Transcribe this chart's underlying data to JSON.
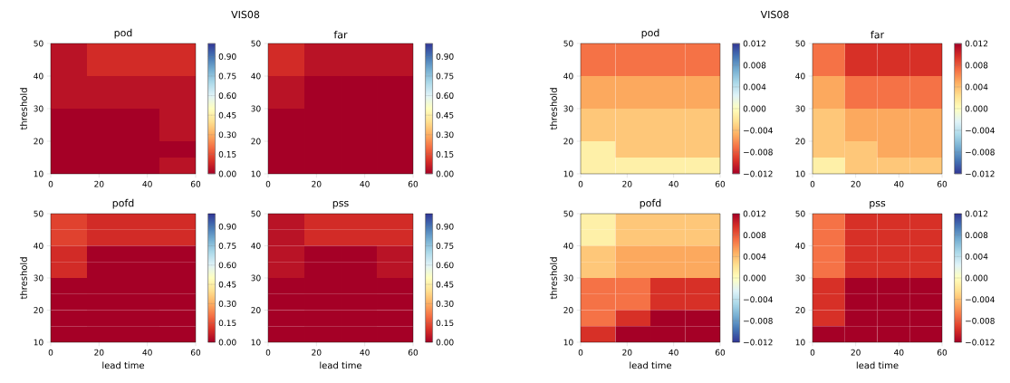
{
  "chart_data": [
    {
      "type": "heatmap",
      "title": "pod",
      "ylabel": "threshold",
      "annotations": [
        "VIS08"
      ],
      "xlim": [
        0,
        60
      ],
      "ylim": [
        10,
        50
      ],
      "xticks": [
        0,
        20,
        40,
        60
      ],
      "yticks": [
        10,
        20,
        30,
        40,
        50
      ],
      "cells": [
        [
          0.04,
          0.09,
          0.09,
          0.09
        ],
        [
          0.04,
          0.09,
          0.09,
          0.09
        ],
        [
          0.04,
          0.04,
          0.04,
          0.04
        ],
        [
          0.04,
          0.04,
          0.04,
          0.04
        ],
        [
          0.0,
          0.0,
          0.0,
          0.04
        ],
        [
          0.0,
          0.0,
          0.0,
          0.04
        ],
        [
          0.0,
          0.0,
          0.0,
          0.0
        ],
        [
          0.0,
          0.0,
          0.0,
          0.04
        ]
      ],
      "clim": [
        0,
        1
      ],
      "cticks": [
        {
          "value": 0,
          "label": "0.00"
        },
        {
          "value": 0.15,
          "label": "0.15"
        },
        {
          "value": 0.3,
          "label": "0.30"
        },
        {
          "value": 0.45,
          "label": "0.45"
        },
        {
          "value": 0.6,
          "label": "0.60"
        },
        {
          "value": 0.75,
          "label": "0.75"
        },
        {
          "value": 0.9,
          "label": "0.90"
        }
      ],
      "colors": [
        "#a50026",
        "#d73027",
        "#f46d43",
        "#fdae61",
        "#fee090",
        "#ffffbf",
        "#e0f3f8",
        "#abd9e9",
        "#74add1",
        "#4575b4",
        "#313695"
      ]
    },
    {
      "type": "heatmap",
      "title": "far",
      "xlim": [
        0,
        60
      ],
      "ylim": [
        10,
        50
      ],
      "xticks": [
        0,
        20,
        40,
        60
      ],
      "yticks": [
        10,
        20,
        30,
        40,
        50
      ],
      "cells": [
        [
          0.09,
          0.04,
          0.04,
          0.04
        ],
        [
          0.09,
          0.04,
          0.04,
          0.04
        ],
        [
          0.04,
          0.0,
          0.0,
          0.0
        ],
        [
          0.04,
          0.0,
          0.0,
          0.0
        ],
        [
          0.0,
          0.0,
          0.0,
          0.0
        ],
        [
          0.0,
          0.0,
          0.0,
          0.0
        ],
        [
          0.0,
          0.0,
          0.0,
          0.0
        ],
        [
          0.0,
          0.0,
          0.0,
          0.0
        ]
      ],
      "clim": [
        0,
        1
      ],
      "cticks": [
        {
          "value": 0,
          "label": "0.00"
        },
        {
          "value": 0.15,
          "label": "0.15"
        },
        {
          "value": 0.3,
          "label": "0.30"
        },
        {
          "value": 0.45,
          "label": "0.45"
        },
        {
          "value": 0.6,
          "label": "0.60"
        },
        {
          "value": 0.75,
          "label": "0.75"
        },
        {
          "value": 0.9,
          "label": "0.90"
        }
      ],
      "colors": [
        "#a50026",
        "#d73027",
        "#f46d43",
        "#fdae61",
        "#fee090",
        "#ffffbf",
        "#e0f3f8",
        "#abd9e9",
        "#74add1",
        "#4575b4",
        "#313695"
      ]
    },
    {
      "type": "heatmap",
      "title": "pofd",
      "xlabel": "lead time",
      "ylabel": "threshold",
      "xlim": [
        0,
        60
      ],
      "ylim": [
        10,
        50
      ],
      "xticks": [
        0,
        20,
        40,
        60
      ],
      "yticks": [
        10,
        20,
        30,
        40,
        50
      ],
      "cells": [
        [
          0.13,
          0.09,
          0.09,
          0.09
        ],
        [
          0.13,
          0.09,
          0.09,
          0.09
        ],
        [
          0.09,
          0.0,
          0.0,
          0.0
        ],
        [
          0.09,
          0.0,
          0.0,
          0.0
        ],
        [
          0.0,
          0.0,
          0.0,
          0.0
        ],
        [
          0.0,
          0.0,
          0.0,
          0.0
        ],
        [
          0.0,
          0.0,
          0.0,
          0.0
        ],
        [
          0.0,
          0.0,
          0.0,
          0.0
        ]
      ],
      "clim": [
        0,
        1
      ],
      "cticks": [
        {
          "value": 0,
          "label": "0.00"
        },
        {
          "value": 0.15,
          "label": "0.15"
        },
        {
          "value": 0.3,
          "label": "0.30"
        },
        {
          "value": 0.45,
          "label": "0.45"
        },
        {
          "value": 0.6,
          "label": "0.60"
        },
        {
          "value": 0.75,
          "label": "0.75"
        },
        {
          "value": 0.9,
          "label": "0.90"
        }
      ],
      "colors": [
        "#a50026",
        "#d73027",
        "#f46d43",
        "#fdae61",
        "#fee090",
        "#ffffbf",
        "#e0f3f8",
        "#abd9e9",
        "#74add1",
        "#4575b4",
        "#313695"
      ]
    },
    {
      "type": "heatmap",
      "title": "pss",
      "xlabel": "lead time",
      "xlim": [
        0,
        60
      ],
      "ylim": [
        10,
        50
      ],
      "xticks": [
        0,
        20,
        40,
        60
      ],
      "yticks": [
        10,
        20,
        30,
        40,
        50
      ],
      "cells": [
        [
          0.04,
          0.09,
          0.09,
          0.09
        ],
        [
          0.04,
          0.09,
          0.09,
          0.09
        ],
        [
          0.04,
          0.0,
          0.0,
          0.04
        ],
        [
          0.04,
          0.0,
          0.0,
          0.04
        ],
        [
          0.0,
          0.0,
          0.0,
          0.0
        ],
        [
          0.0,
          0.0,
          0.0,
          0.0
        ],
        [
          0.0,
          0.0,
          0.0,
          0.0
        ],
        [
          0.0,
          0.0,
          0.0,
          0.0
        ]
      ],
      "clim": [
        0,
        1
      ],
      "cticks": [
        {
          "value": 0,
          "label": "0.00"
        },
        {
          "value": 0.15,
          "label": "0.15"
        },
        {
          "value": 0.3,
          "label": "0.30"
        },
        {
          "value": 0.45,
          "label": "0.45"
        },
        {
          "value": 0.6,
          "label": "0.60"
        },
        {
          "value": 0.75,
          "label": "0.75"
        },
        {
          "value": 0.9,
          "label": "0.90"
        }
      ],
      "colors": [
        "#a50026",
        "#d73027",
        "#f46d43",
        "#fdae61",
        "#fee090",
        "#ffffbf",
        "#e0f3f8",
        "#abd9e9",
        "#74add1",
        "#4575b4",
        "#313695"
      ]
    },
    {
      "type": "heatmap",
      "title": "pod",
      "ylabel": "threshold",
      "annotations": [
        "VIS08"
      ],
      "xlim": [
        0,
        60
      ],
      "ylim": [
        10,
        50
      ],
      "xticks": [
        0,
        20,
        40,
        60
      ],
      "yticks": [
        10,
        20,
        30,
        40,
        50
      ],
      "cells": [
        [
          -0.007,
          -0.007,
          -0.007,
          -0.007
        ],
        [
          -0.007,
          -0.007,
          -0.007,
          -0.007
        ],
        [
          -0.005,
          -0.005,
          -0.005,
          -0.005
        ],
        [
          -0.005,
          -0.005,
          -0.005,
          -0.005
        ],
        [
          -0.0036,
          -0.0036,
          -0.0036,
          -0.0036
        ],
        [
          -0.0036,
          -0.0036,
          -0.0036,
          -0.0036
        ],
        [
          -0.0012,
          -0.0036,
          -0.0036,
          -0.0036
        ],
        [
          -0.0012,
          -0.0012,
          -0.0012,
          -0.0012
        ]
      ],
      "clim": [
        -0.012,
        0.012
      ],
      "cticks": [
        {
          "value": -0.012,
          "label": "−0.012"
        },
        {
          "value": -0.008,
          "label": "−0.008"
        },
        {
          "value": -0.004,
          "label": "−0.004"
        },
        {
          "value": 0,
          "label": "0.000"
        },
        {
          "value": 0.004,
          "label": "0.004"
        },
        {
          "value": 0.008,
          "label": "0.008"
        },
        {
          "value": 0.012,
          "label": "0.012"
        }
      ],
      "colors": [
        "#a50026",
        "#d73027",
        "#f46d43",
        "#fdae61",
        "#fee090",
        "#ffffbf",
        "#e0f3f8",
        "#abd9e9",
        "#74add1",
        "#4575b4",
        "#313695"
      ]
    },
    {
      "type": "heatmap",
      "title": "far",
      "xlim": [
        0,
        60
      ],
      "ylim": [
        10,
        50
      ],
      "xticks": [
        0,
        20,
        40,
        60
      ],
      "yticks": [
        10,
        20,
        30,
        40,
        50
      ],
      "cells": [
        [
          0.007,
          0.0096,
          0.0096,
          0.0096
        ],
        [
          0.007,
          0.0096,
          0.0096,
          0.0096
        ],
        [
          0.005,
          0.007,
          0.007,
          0.007
        ],
        [
          0.005,
          0.007,
          0.007,
          0.007
        ],
        [
          0.0036,
          0.005,
          0.005,
          0.005
        ],
        [
          0.0036,
          0.005,
          0.005,
          0.005
        ],
        [
          0.0036,
          0.0036,
          0.005,
          0.005
        ],
        [
          0.0012,
          0.0036,
          0.0036,
          0.0036
        ]
      ],
      "clim": [
        -0.012,
        0.012
      ],
      "cticks": [
        {
          "value": -0.012,
          "label": "−0.012"
        },
        {
          "value": -0.008,
          "label": "−0.008"
        },
        {
          "value": -0.004,
          "label": "−0.004"
        },
        {
          "value": 0,
          "label": "0.000"
        },
        {
          "value": 0.004,
          "label": "0.004"
        },
        {
          "value": 0.008,
          "label": "0.008"
        },
        {
          "value": 0.012,
          "label": "0.012"
        }
      ],
      "colors": [
        "#313695",
        "#4575b4",
        "#74add1",
        "#abd9e9",
        "#e0f3f8",
        "#ffffbf",
        "#fee090",
        "#fdae61",
        "#f46d43",
        "#d73027",
        "#a50026"
      ]
    },
    {
      "type": "heatmap",
      "title": "pofd",
      "xlabel": "lead time",
      "ylabel": "threshold",
      "xlim": [
        0,
        60
      ],
      "ylim": [
        10,
        50
      ],
      "xticks": [
        0,
        20,
        40,
        60
      ],
      "yticks": [
        10,
        20,
        30,
        40,
        50
      ],
      "cells": [
        [
          0.0012,
          0.0036,
          0.0036,
          0.0036
        ],
        [
          0.0012,
          0.0036,
          0.0036,
          0.0036
        ],
        [
          0.0036,
          0.005,
          0.005,
          0.005
        ],
        [
          0.0036,
          0.005,
          0.005,
          0.005
        ],
        [
          0.007,
          0.007,
          0.0096,
          0.0096
        ],
        [
          0.007,
          0.007,
          0.0096,
          0.0096
        ],
        [
          0.007,
          0.0096,
          0.012,
          0.012
        ],
        [
          0.0096,
          0.012,
          0.012,
          0.012
        ]
      ],
      "clim": [
        -0.012,
        0.012
      ],
      "cticks": [
        {
          "value": -0.012,
          "label": "−0.012"
        },
        {
          "value": -0.008,
          "label": "−0.008"
        },
        {
          "value": -0.004,
          "label": "−0.004"
        },
        {
          "value": 0,
          "label": "0.000"
        },
        {
          "value": 0.004,
          "label": "0.004"
        },
        {
          "value": 0.008,
          "label": "0.008"
        },
        {
          "value": 0.012,
          "label": "0.012"
        }
      ],
      "colors": [
        "#313695",
        "#4575b4",
        "#74add1",
        "#abd9e9",
        "#e0f3f8",
        "#ffffbf",
        "#fee090",
        "#fdae61",
        "#f46d43",
        "#d73027",
        "#a50026"
      ]
    },
    {
      "type": "heatmap",
      "title": "pss",
      "xlabel": "lead time",
      "xlim": [
        0,
        60
      ],
      "ylim": [
        10,
        50
      ],
      "xticks": [
        0,
        20,
        40,
        60
      ],
      "yticks": [
        10,
        20,
        30,
        40,
        50
      ],
      "cells": [
        [
          -0.007,
          -0.0096,
          -0.0096,
          -0.0096
        ],
        [
          -0.007,
          -0.0096,
          -0.0096,
          -0.0096
        ],
        [
          -0.007,
          -0.0096,
          -0.0096,
          -0.0096
        ],
        [
          -0.007,
          -0.0096,
          -0.0096,
          -0.0096
        ],
        [
          -0.0096,
          -0.012,
          -0.012,
          -0.012
        ],
        [
          -0.0096,
          -0.012,
          -0.012,
          -0.012
        ],
        [
          -0.0096,
          -0.012,
          -0.012,
          -0.012
        ],
        [
          -0.012,
          -0.012,
          -0.012,
          -0.012
        ]
      ],
      "clim": [
        -0.012,
        0.012
      ],
      "cticks": [
        {
          "value": -0.012,
          "label": "−0.012"
        },
        {
          "value": -0.008,
          "label": "−0.008"
        },
        {
          "value": -0.004,
          "label": "−0.004"
        },
        {
          "value": 0,
          "label": "0.000"
        },
        {
          "value": 0.004,
          "label": "0.004"
        },
        {
          "value": 0.008,
          "label": "0.008"
        },
        {
          "value": 0.012,
          "label": "0.012"
        }
      ],
      "colors": [
        "#a50026",
        "#d73027",
        "#f46d43",
        "#fdae61",
        "#fee090",
        "#ffffbf",
        "#e0f3f8",
        "#abd9e9",
        "#74add1",
        "#4575b4",
        "#313695"
      ]
    }
  ]
}
